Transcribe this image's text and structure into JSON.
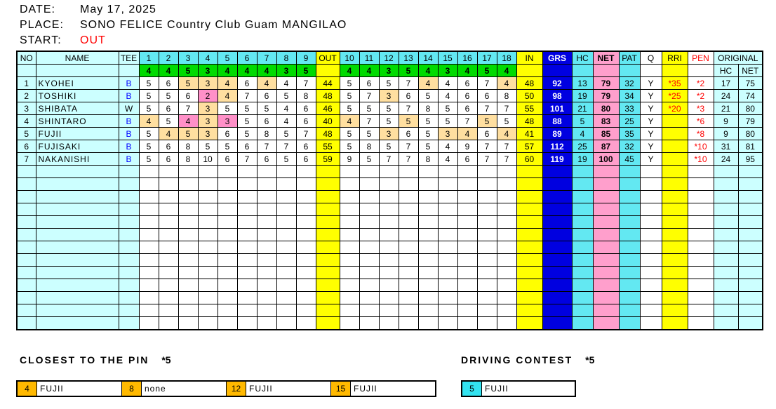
{
  "header": {
    "date_label": "DATE:",
    "date": "May 17, 2025",
    "place_label": "PLACE:",
    "place": "SONO FELICE Country Club Guam MANGILAO",
    "start_label": "START:",
    "start": "OUT"
  },
  "table": {
    "columns": {
      "no": "NO",
      "name": "NAME",
      "tee": "TEE",
      "out": "OUT",
      "in": "IN",
      "grs": "GRS",
      "hc": "HC",
      "net": "NET",
      "pat": "PAT",
      "q": "Q",
      "rri": "RRI",
      "pen": "PEN",
      "original": "ORIGINAL",
      "orig_hc": "HC",
      "orig_net": "NET"
    },
    "holes_out": [
      "1",
      "2",
      "3",
      "4",
      "5",
      "6",
      "7",
      "8",
      "9"
    ],
    "holes_in": [
      "10",
      "11",
      "12",
      "13",
      "14",
      "15",
      "16",
      "17",
      "18"
    ],
    "par_out": [
      4,
      4,
      5,
      3,
      4,
      4,
      4,
      3,
      5
    ],
    "par_in": [
      4,
      4,
      3,
      5,
      4,
      3,
      4,
      5,
      4
    ],
    "players": [
      {
        "no": 1,
        "name": "KYOHEI",
        "tee": "B",
        "out": [
          5,
          6,
          5,
          3,
          4,
          6,
          4,
          4,
          7
        ],
        "out_total": 44,
        "in": [
          5,
          6,
          5,
          7,
          4,
          4,
          6,
          7,
          4
        ],
        "in_total": 48,
        "grs": 92,
        "hc": 13,
        "net": 79,
        "pat": 32,
        "q": "Y",
        "rri": "*35",
        "pen": "*2",
        "orig_hc": 17,
        "orig_net": 75
      },
      {
        "no": 2,
        "name": "TOSHIKI",
        "tee": "B",
        "out": [
          5,
          5,
          6,
          2,
          4,
          7,
          6,
          5,
          8
        ],
        "out_total": 48,
        "in": [
          5,
          7,
          3,
          6,
          5,
          4,
          6,
          6,
          8
        ],
        "in_total": 50,
        "grs": 98,
        "hc": 19,
        "net": 79,
        "pat": 34,
        "q": "Y",
        "rri": "*25",
        "pen": "*2",
        "orig_hc": 24,
        "orig_net": 74
      },
      {
        "no": 3,
        "name": "SHIBATA",
        "tee": "W",
        "out": [
          5,
          6,
          7,
          3,
          5,
          5,
          5,
          4,
          6
        ],
        "out_total": 46,
        "in": [
          5,
          5,
          5,
          7,
          8,
          5,
          6,
          7,
          7
        ],
        "in_total": 55,
        "grs": 101,
        "hc": 21,
        "net": 80,
        "pat": 33,
        "q": "Y",
        "rri": "*20",
        "pen": "*3",
        "orig_hc": 21,
        "orig_net": 80
      },
      {
        "no": 4,
        "name": "SHINTARO",
        "tee": "B",
        "out": [
          4,
          5,
          4,
          3,
          3,
          5,
          6,
          4,
          6
        ],
        "out_total": 40,
        "in": [
          4,
          7,
          5,
          5,
          5,
          5,
          7,
          5,
          5
        ],
        "in_total": 48,
        "grs": 88,
        "hc": 5,
        "net": 83,
        "pat": 25,
        "q": "Y",
        "rri": "",
        "pen": "*6",
        "orig_hc": 9,
        "orig_net": 79
      },
      {
        "no": 5,
        "name": "FUJII",
        "tee": "B",
        "out": [
          5,
          4,
          5,
          3,
          6,
          5,
          8,
          5,
          7
        ],
        "out_total": 48,
        "in": [
          5,
          5,
          3,
          6,
          5,
          3,
          4,
          6,
          4
        ],
        "in_total": 41,
        "grs": 89,
        "hc": 4,
        "net": 85,
        "pat": 35,
        "q": "Y",
        "rri": "",
        "pen": "*8",
        "orig_hc": 9,
        "orig_net": 80
      },
      {
        "no": 6,
        "name": "FUJISAKI",
        "tee": "B",
        "out": [
          5,
          6,
          8,
          5,
          5,
          6,
          7,
          7,
          6
        ],
        "out_total": 55,
        "in": [
          5,
          8,
          5,
          7,
          5,
          4,
          9,
          7,
          7
        ],
        "in_total": 57,
        "grs": 112,
        "hc": 25,
        "net": 87,
        "pat": 32,
        "q": "Y",
        "rri": "",
        "pen": "*10",
        "orig_hc": 31,
        "orig_net": 81
      },
      {
        "no": 7,
        "name": "NAKANISHI",
        "tee": "B",
        "out": [
          5,
          6,
          8,
          10,
          6,
          7,
          6,
          5,
          6
        ],
        "out_total": 59,
        "in": [
          9,
          5,
          7,
          7,
          8,
          4,
          6,
          7,
          7
        ],
        "in_total": 60,
        "grs": 119,
        "hc": 19,
        "net": 100,
        "pat": 45,
        "q": "Y",
        "rri": "",
        "pen": "*10",
        "orig_hc": 24,
        "orig_net": 95
      }
    ],
    "empty_rows": 13
  },
  "closest_to_the_pin": {
    "label": "CLOSEST TO THE PIN",
    "star": "*5",
    "entries": [
      {
        "hole": "4",
        "winner": "FUJII"
      },
      {
        "hole": "8",
        "winner": "none"
      },
      {
        "hole": "12",
        "winner": "FUJII"
      },
      {
        "hole": "15",
        "winner": "FUJII"
      }
    ]
  },
  "driving_contest": {
    "label": "DRIVING CONTEST",
    "star": "*5",
    "entries": [
      {
        "hole": "5",
        "winner": "FUJII"
      }
    ]
  },
  "colors": {
    "pale_cyan": "#CCFFFF",
    "cyan": "#63E8F2",
    "green_par": "#00DB00",
    "yellow": "#FFFF00",
    "grs_blue": "#0000E0",
    "net_pink": "#FF9FCC",
    "par_match_tan": "#FFDFA0",
    "birdie_pink": "#FF90C8",
    "prize_orange": "#FFB900",
    "prize_cyan": "#33E3F0",
    "accent_red": "#FF0000",
    "tee_blue": "#0000FF"
  }
}
